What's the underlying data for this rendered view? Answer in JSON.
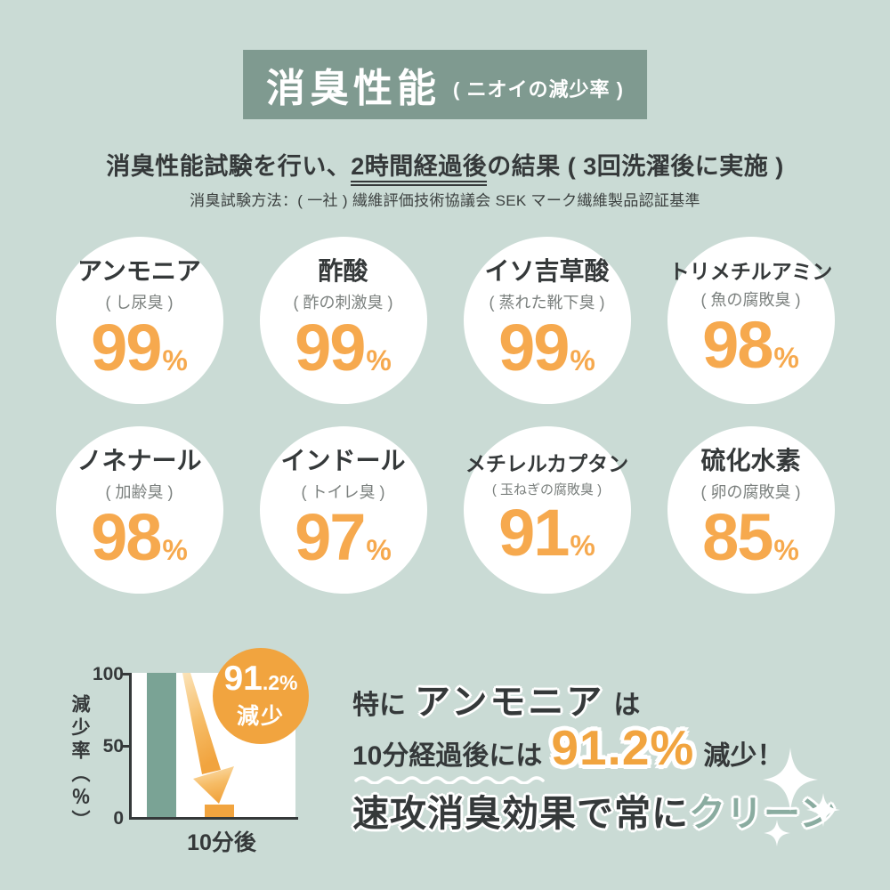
{
  "colors": {
    "background": "#cadbd5",
    "banner": "#7f9a90",
    "accent_orange": "#f6a94e",
    "deep_orange": "#f1a43f",
    "teal_bar": "#7aa395",
    "accent_teal_text": "#8aaca0",
    "dark_text": "#35393a",
    "white": "#ffffff"
  },
  "header": {
    "title": "消臭性能",
    "title_note": "( ニオイの減少率 )"
  },
  "intro": {
    "result_pre": "消臭性能試験を行い、",
    "result_underlined": "2時間経過後",
    "result_post": "の結果 ( 3回洗濯後に実施 )",
    "method": "消臭試験方法：( 一社 ) 繊維評価技術協議会 SEK マーク繊維製品認証基準"
  },
  "stats": [
    {
      "name": "アンモニア",
      "note": "( し尿臭 )",
      "value": "99",
      "unit": "%"
    },
    {
      "name": "酢酸",
      "note": "( 酢の刺激臭 )",
      "value": "99",
      "unit": "%"
    },
    {
      "name": "イソ吉草酸",
      "note": "( 蒸れた靴下臭 )",
      "value": "99",
      "unit": "%"
    },
    {
      "name": "トリメチルアミン",
      "note": "( 魚の腐敗臭 )",
      "value": "98",
      "unit": "%"
    },
    {
      "name": "ノネナール",
      "note": "( 加齢臭 )",
      "value": "98",
      "unit": "%"
    },
    {
      "name": "インドール",
      "note": "( トイレ臭 )",
      "value": "97",
      "unit": "%"
    },
    {
      "name": "メチレルカプタン",
      "note": "( 玉ねぎの腐敗臭 )",
      "value": "91",
      "unit": "%"
    },
    {
      "name": "硫化水素",
      "note": "( 卵の腐敗臭 )",
      "value": "85",
      "unit": "%"
    }
  ],
  "chart": {
    "ylabel": "減少率（％）",
    "yticks": [
      "100",
      "50",
      "0"
    ],
    "xlabel": "10分後",
    "badge": {
      "big": "91",
      "small": ".2%",
      "label": "減少"
    }
  },
  "chart_data": {
    "type": "bar",
    "categories": [
      "",
      "10分後"
    ],
    "series": [
      {
        "name": "減少率（％）",
        "values": [
          100,
          8.8
        ]
      }
    ],
    "title": "",
    "xlabel": "10分後",
    "ylabel": "減少率（％）",
    "ylim": [
      0,
      100
    ],
    "yticks": [
      0,
      50,
      100
    ],
    "grid": false,
    "legend": false,
    "annotation": "91.2% 減少",
    "bar_colors": [
      "#7aa395",
      "#f1a43f"
    ]
  },
  "callout": {
    "line1_pre": "特に",
    "line1_em": "アンモニア",
    "line1_post": "は",
    "line2_pre": "10分経過後には",
    "line2_value": "91.2%",
    "line2_post": "減少！",
    "line3_main": "速攻消臭効果で常に",
    "line3_accent": "クリーン"
  }
}
